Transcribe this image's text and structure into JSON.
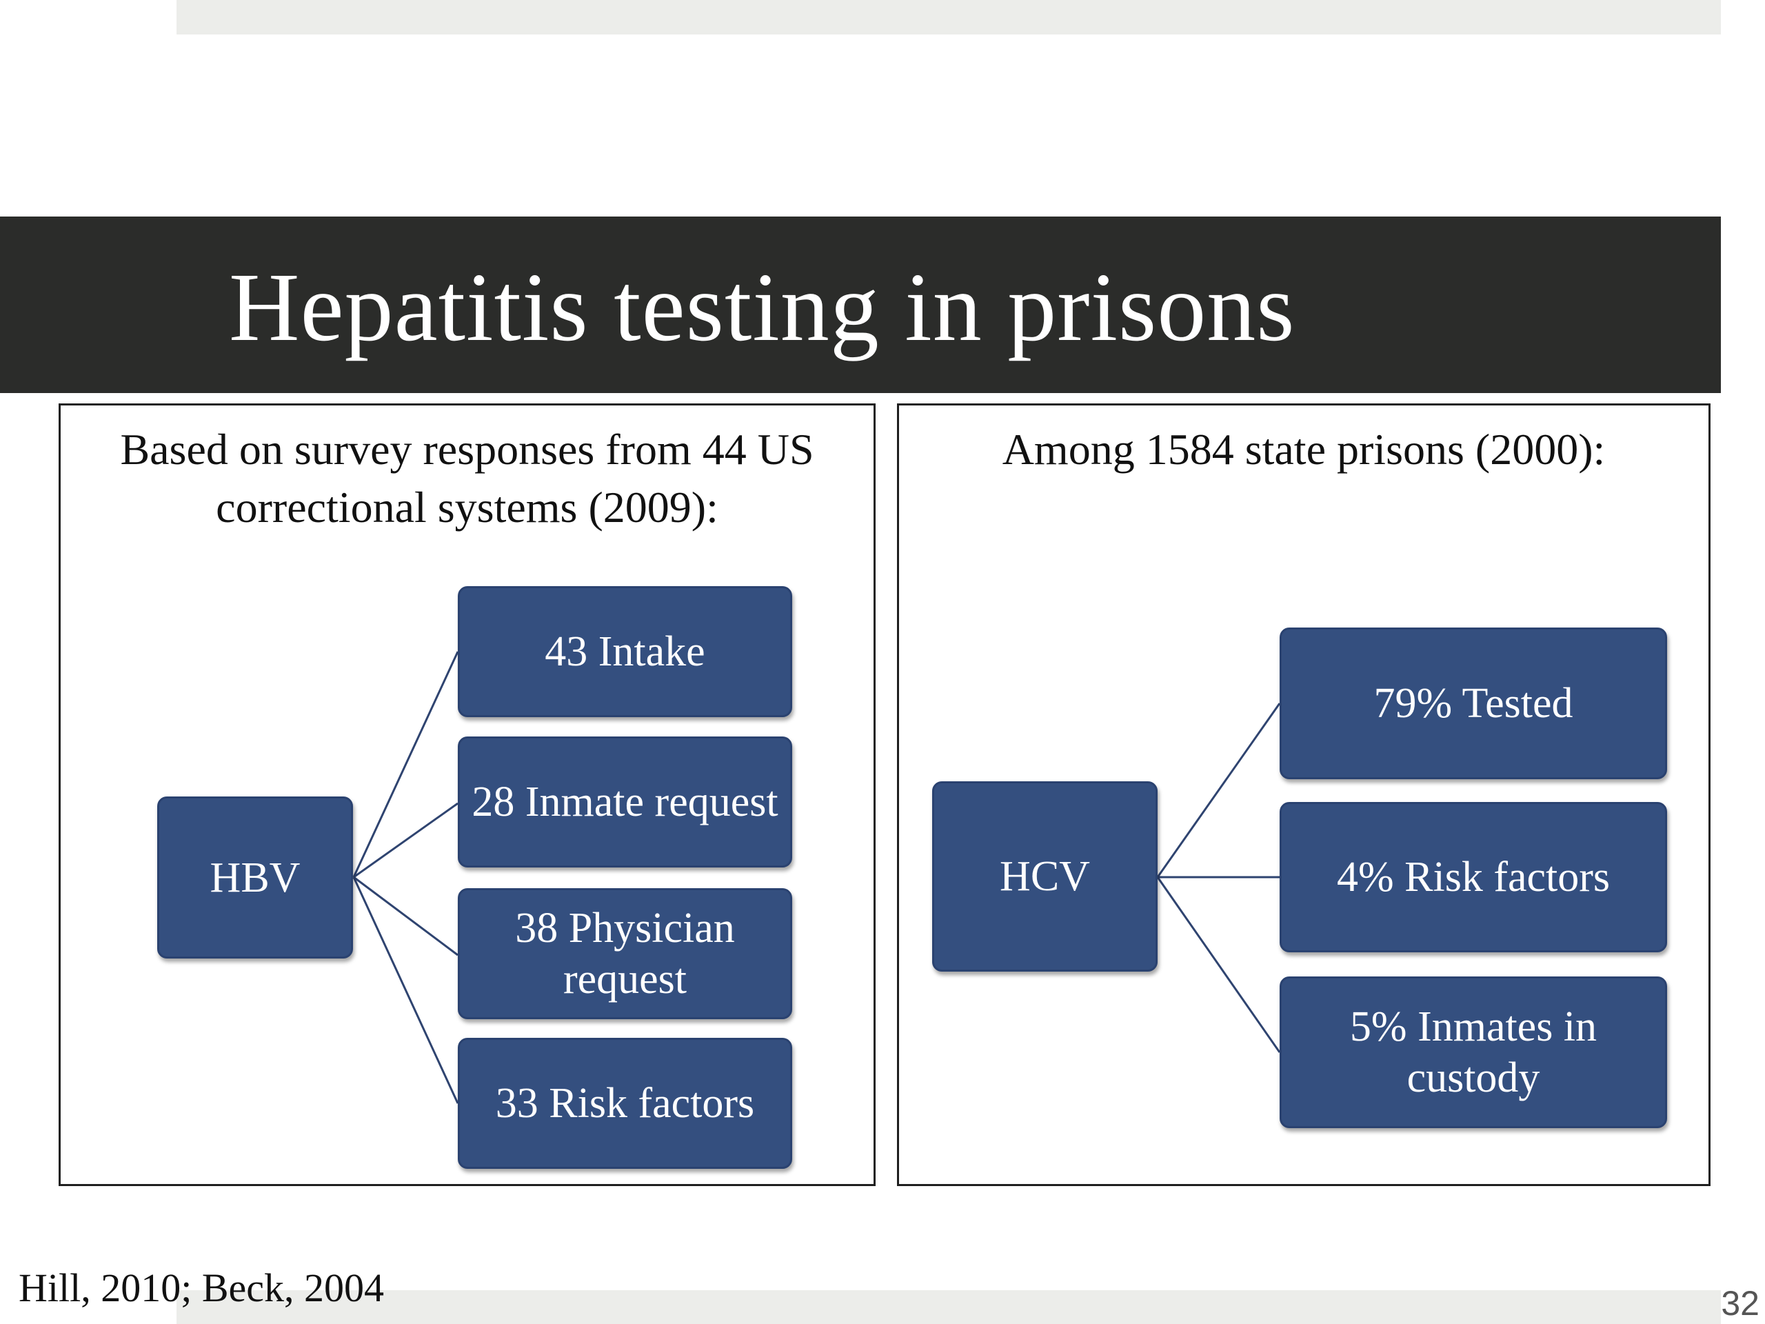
{
  "slide": {
    "title": "Hepatitis testing in prisons",
    "source": "Hill, 2010; Beck, 2004",
    "page_number": "32"
  },
  "panels": {
    "left": {
      "caption_line1": "Based on survey responses from 44 US",
      "caption_line2": "correctional systems (2009):",
      "root": "HBV",
      "children": [
        "43 Intake",
        "28 Inmate request",
        "38 Physician request",
        "33 Risk factors"
      ]
    },
    "right": {
      "caption_line1": "Among 1584 state prisons (2000):",
      "root": "HCV",
      "children": [
        "79% Tested",
        "4% Risk factors",
        "5% Inmates in custody"
      ]
    }
  },
  "colors": {
    "title_bar": "#2b2c2a",
    "node_fill": "#344f7f",
    "connector": "#2f4470"
  }
}
